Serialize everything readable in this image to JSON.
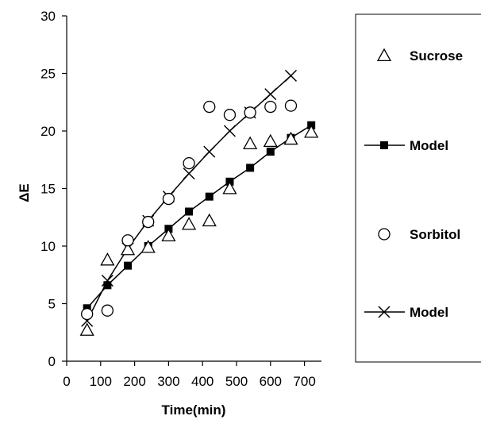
{
  "chart_data": {
    "type": "scatter",
    "xlabel": "Time(min)",
    "ylabel": "ΔE",
    "xlim": [
      0,
      750
    ],
    "ylim": [
      0,
      30
    ],
    "xticks": [
      0,
      100,
      200,
      300,
      400,
      500,
      600,
      700
    ],
    "yticks": [
      0,
      5,
      10,
      15,
      20,
      25,
      30
    ],
    "grid": false,
    "legend_position": "right",
    "series": [
      {
        "name": "Sucrose",
        "marker": "open-triangle",
        "line": false,
        "color": "#000000",
        "x": [
          60,
          120,
          180,
          240,
          300,
          360,
          420,
          480,
          540,
          600,
          660,
          720
        ],
        "y": [
          2.7,
          8.8,
          9.7,
          9.9,
          10.9,
          11.9,
          12.2,
          15.0,
          18.9,
          19.1,
          19.3,
          19.9
        ]
      },
      {
        "name": "Model",
        "marker": "filled-square",
        "line": true,
        "color": "#000000",
        "x": [
          60,
          120,
          180,
          240,
          300,
          360,
          420,
          480,
          540,
          600,
          660,
          720
        ],
        "y": [
          4.6,
          6.6,
          8.3,
          10.0,
          11.5,
          13.0,
          14.3,
          15.6,
          16.8,
          18.2,
          19.4,
          20.5
        ]
      },
      {
        "name": "Sorbitol",
        "marker": "open-circle",
        "line": false,
        "color": "#000000",
        "x": [
          60,
          120,
          180,
          240,
          300,
          360,
          420,
          480,
          540,
          600,
          660
        ],
        "y": [
          4.1,
          4.4,
          10.5,
          12.1,
          14.1,
          17.2,
          22.1,
          21.4,
          21.6,
          22.1,
          22.2
        ]
      },
      {
        "name": "Model",
        "marker": "x",
        "line": true,
        "color": "#000000",
        "x": [
          60,
          120,
          180,
          240,
          300,
          360,
          420,
          480,
          540,
          600,
          660
        ],
        "y": [
          3.5,
          7.0,
          9.8,
          12.2,
          14.3,
          16.3,
          18.2,
          20.0,
          21.6,
          23.2,
          24.8
        ]
      }
    ]
  }
}
